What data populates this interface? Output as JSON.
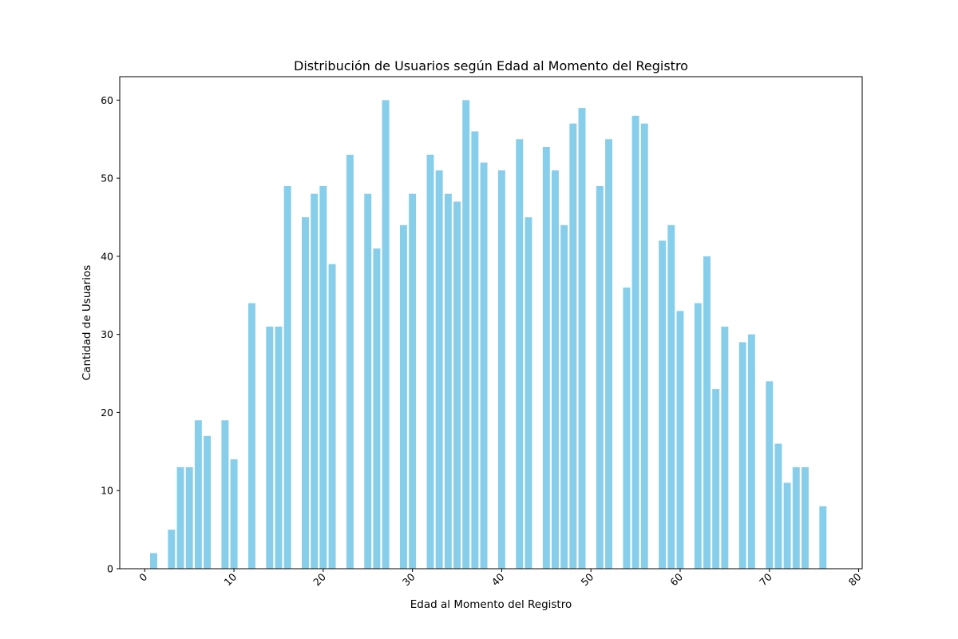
{
  "chart_data": {
    "type": "bar",
    "title": "Distribución de Usuarios según Edad al Momento del Registro",
    "xlabel": "Edad al Momento del Registro",
    "ylabel": "Cantidad de Usuarios",
    "xlim": [
      -2.8,
      80.4
    ],
    "ylim": [
      0,
      63
    ],
    "xticks": [
      0,
      10,
      20,
      30,
      40,
      50,
      60,
      70,
      80
    ],
    "yticks": [
      0,
      10,
      20,
      30,
      40,
      50,
      60
    ],
    "x_tick_rotation_deg": 45,
    "grid": false,
    "legend": "none",
    "bar_color": "#87CEEB",
    "x": [
      1,
      3,
      4,
      5,
      6,
      7,
      9,
      10,
      12,
      14,
      15,
      16,
      18,
      19,
      20,
      21,
      23,
      25,
      26,
      27,
      29,
      30,
      32,
      33,
      34,
      35,
      36,
      37,
      38,
      40,
      42,
      43,
      45,
      46,
      47,
      48,
      49,
      51,
      52,
      54,
      55,
      56,
      58,
      59,
      60,
      62,
      63,
      64,
      65,
      67,
      68,
      70,
      71,
      72,
      73,
      74,
      76
    ],
    "values": [
      2,
      5,
      13,
      13,
      19,
      17,
      19,
      14,
      34,
      31,
      31,
      49,
      45,
      48,
      49,
      39,
      53,
      48,
      41,
      60,
      44,
      48,
      53,
      51,
      48,
      47,
      60,
      56,
      52,
      51,
      55,
      45,
      54,
      51,
      44,
      57,
      59,
      49,
      55,
      36,
      58,
      57,
      42,
      44,
      33,
      34,
      40,
      23,
      31,
      29,
      30,
      24,
      16,
      11,
      13,
      13,
      8
    ]
  }
}
